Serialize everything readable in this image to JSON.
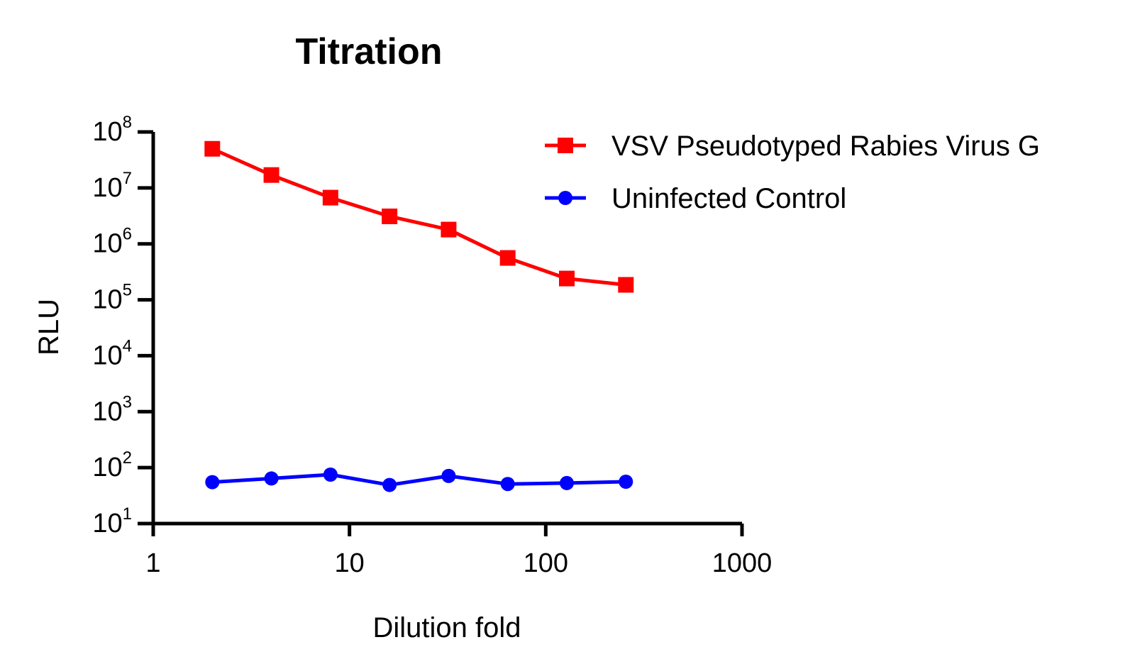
{
  "chart_data": {
    "type": "line",
    "title": "Titration",
    "xlabel": "Dilution fold",
    "ylabel": "RLU",
    "x_scale": "log",
    "y_scale": "log",
    "xlim": [
      1,
      1000
    ],
    "ylim": [
      10,
      100000000
    ],
    "x_ticks": [
      {
        "value": 1,
        "label": "1"
      },
      {
        "value": 10,
        "label": "10"
      },
      {
        "value": 100,
        "label": "100"
      },
      {
        "value": 1000,
        "label": "1000"
      }
    ],
    "y_ticks": [
      {
        "value": 10,
        "base": "10",
        "exp": "1"
      },
      {
        "value": 100,
        "base": "10",
        "exp": "2"
      },
      {
        "value": 1000,
        "base": "10",
        "exp": "3"
      },
      {
        "value": 10000,
        "base": "10",
        "exp": "4"
      },
      {
        "value": 100000,
        "base": "10",
        "exp": "5"
      },
      {
        "value": 1000000,
        "base": "10",
        "exp": "6"
      },
      {
        "value": 10000000,
        "base": "10",
        "exp": "7"
      },
      {
        "value": 100000000,
        "base": "10",
        "exp": "8"
      }
    ],
    "grid": false,
    "legend_position": "top-right",
    "x": [
      2,
      4,
      8,
      16,
      32,
      64,
      128,
      256
    ],
    "series": [
      {
        "name": "VSV Pseudotyped Rabies Virus G",
        "color": "#ff0000",
        "marker": "square",
        "values": [
          50000000,
          17000000,
          6700000,
          3100000,
          1800000,
          560000,
          240000,
          185000
        ]
      },
      {
        "name": "Uninfected Control",
        "color": "#0000ff",
        "marker": "circle",
        "values": [
          55,
          64,
          75,
          49,
          71,
          51,
          53,
          56
        ]
      }
    ]
  }
}
